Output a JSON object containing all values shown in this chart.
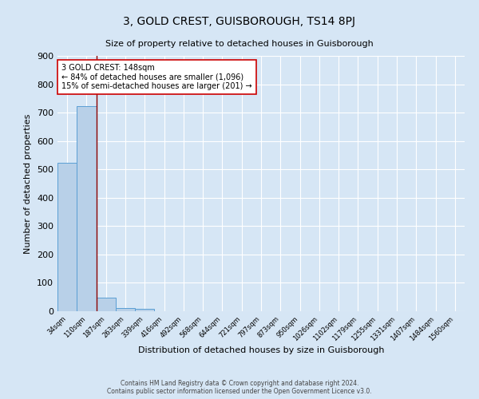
{
  "title": "3, GOLD CREST, GUISBOROUGH, TS14 8PJ",
  "subtitle": "Size of property relative to detached houses in Guisborough",
  "xlabel": "Distribution of detached houses by size in Guisborough",
  "ylabel": "Number of detached properties",
  "footer_line1": "Contains HM Land Registry data © Crown copyright and database right 2024.",
  "footer_line2": "Contains public sector information licensed under the Open Government Licence v3.0.",
  "bar_labels": [
    "34sqm",
    "110sqm",
    "187sqm",
    "263sqm",
    "339sqm",
    "416sqm",
    "492sqm",
    "568sqm",
    "644sqm",
    "721sqm",
    "797sqm",
    "873sqm",
    "950sqm",
    "1026sqm",
    "1102sqm",
    "1179sqm",
    "1255sqm",
    "1331sqm",
    "1407sqm",
    "1484sqm",
    "1560sqm"
  ],
  "bar_values": [
    524,
    724,
    48,
    10,
    8,
    0,
    0,
    0,
    0,
    0,
    0,
    0,
    0,
    0,
    0,
    0,
    0,
    0,
    0,
    0,
    0
  ],
  "bar_color": "#b8d0e8",
  "bar_edge_color": "#5a9fd4",
  "background_color": "#d6e6f5",
  "grid_color": "#ffffff",
  "vline_x": 1.5,
  "vline_color": "#8b0000",
  "annotation_text": "3 GOLD CREST: 148sqm\n← 84% of detached houses are smaller (1,096)\n15% of semi-detached houses are larger (201) →",
  "annotation_box_color": "#ffffff",
  "annotation_box_edge": "#cc0000",
  "ylim": [
    0,
    900
  ],
  "yticks": [
    0,
    100,
    200,
    300,
    400,
    500,
    600,
    700,
    800,
    900
  ]
}
